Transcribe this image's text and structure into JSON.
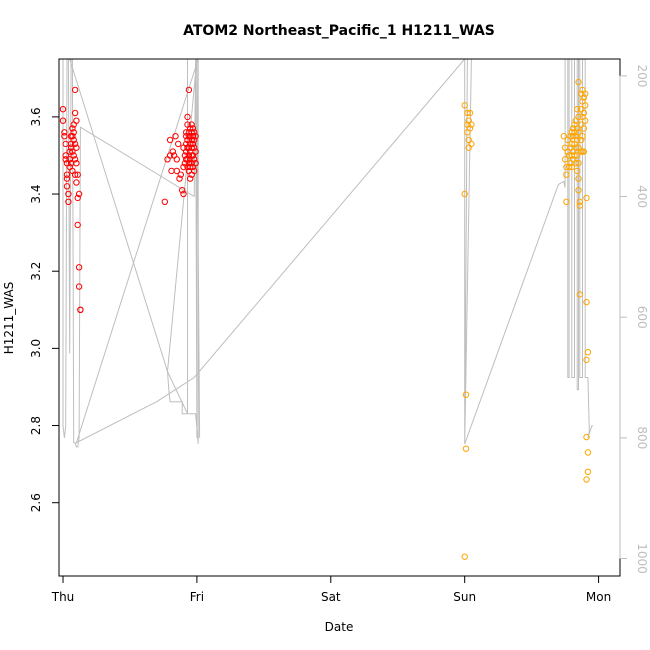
{
  "chart_data": {
    "type": "scatter",
    "title": "ATOM2 Northeast_Pacific_1 H1211_WAS",
    "xlabel": "Date",
    "ylabel": "H1211_WAS",
    "x_ticks": [
      "Thu",
      "Fri",
      "Sat",
      "Sun",
      "Mon"
    ],
    "x_range_days": [
      -0.03,
      4.16
    ],
    "ylim": [
      2.41,
      3.75
    ],
    "y_ticks": [
      2.6,
      2.8,
      3.0,
      3.2,
      3.4,
      3.6
    ],
    "y2_ticks": [
      200,
      400,
      600,
      800,
      1000
    ],
    "y2lim": [
      1029,
      172
    ],
    "grid": false,
    "legend": "none",
    "colors": {
      "series_a": "#ff0000",
      "series_b": "#ffa500",
      "altitude_line": "#bebebe",
      "axis": "#000000"
    },
    "series": [
      {
        "color": "#ff0000",
        "points": [
          [
            0.0,
            3.62
          ],
          [
            0.0,
            3.59
          ],
          [
            0.01,
            3.56
          ],
          [
            0.01,
            3.55
          ],
          [
            0.02,
            3.53
          ],
          [
            0.02,
            3.5
          ],
          [
            0.02,
            3.49
          ],
          [
            0.03,
            3.48
          ],
          [
            0.03,
            3.45
          ],
          [
            0.03,
            3.44
          ],
          [
            0.03,
            3.42
          ],
          [
            0.04,
            3.4
          ],
          [
            0.04,
            3.38
          ],
          [
            0.05,
            3.51
          ],
          [
            0.05,
            3.49
          ],
          [
            0.05,
            3.47
          ],
          [
            0.06,
            3.55
          ],
          [
            0.06,
            3.53
          ],
          [
            0.06,
            3.52
          ],
          [
            0.06,
            3.48
          ],
          [
            0.07,
            3.57
          ],
          [
            0.07,
            3.55
          ],
          [
            0.07,
            3.51
          ],
          [
            0.07,
            3.46
          ],
          [
            0.08,
            3.58
          ],
          [
            0.08,
            3.56
          ],
          [
            0.08,
            3.54
          ],
          [
            0.08,
            3.5
          ],
          [
            0.09,
            3.67
          ],
          [
            0.09,
            3.61
          ],
          [
            0.09,
            3.53
          ],
          [
            0.09,
            3.49
          ],
          [
            0.09,
            3.45
          ],
          [
            0.1,
            3.59
          ],
          [
            0.1,
            3.52
          ],
          [
            0.1,
            3.48
          ],
          [
            0.1,
            3.43
          ],
          [
            0.11,
            3.45
          ],
          [
            0.11,
            3.39
          ],
          [
            0.11,
            3.32
          ],
          [
            0.12,
            3.4
          ],
          [
            0.12,
            3.21
          ],
          [
            0.12,
            3.16
          ],
          [
            0.13,
            3.1
          ],
          [
            0.13,
            3.1
          ],
          [
            0.76,
            3.38
          ],
          [
            0.78,
            3.49
          ],
          [
            0.8,
            3.54
          ],
          [
            0.8,
            3.5
          ],
          [
            0.81,
            3.46
          ],
          [
            0.82,
            3.51
          ],
          [
            0.83,
            3.5
          ],
          [
            0.84,
            3.55
          ],
          [
            0.85,
            3.49
          ],
          [
            0.85,
            3.46
          ],
          [
            0.86,
            3.53
          ],
          [
            0.87,
            3.44
          ],
          [
            0.88,
            3.45
          ],
          [
            0.89,
            3.41
          ],
          [
            0.9,
            3.47
          ],
          [
            0.9,
            3.4
          ],
          [
            0.9,
            3.52
          ],
          [
            0.91,
            3.5
          ],
          [
            0.91,
            3.48
          ],
          [
            0.92,
            3.56
          ],
          [
            0.92,
            3.55
          ],
          [
            0.92,
            3.53
          ],
          [
            0.92,
            3.51
          ],
          [
            0.92,
            3.49
          ],
          [
            0.93,
            3.6
          ],
          [
            0.93,
            3.58
          ],
          [
            0.93,
            3.54
          ],
          [
            0.93,
            3.52
          ],
          [
            0.93,
            3.49
          ],
          [
            0.93,
            3.47
          ],
          [
            0.94,
            3.67
          ],
          [
            0.94,
            3.56
          ],
          [
            0.94,
            3.55
          ],
          [
            0.94,
            3.52
          ],
          [
            0.94,
            3.5
          ],
          [
            0.94,
            3.48
          ],
          [
            0.94,
            3.46
          ],
          [
            0.95,
            3.57
          ],
          [
            0.95,
            3.55
          ],
          [
            0.95,
            3.53
          ],
          [
            0.95,
            3.51
          ],
          [
            0.95,
            3.49
          ],
          [
            0.95,
            3.47
          ],
          [
            0.95,
            3.44
          ],
          [
            0.96,
            3.58
          ],
          [
            0.96,
            3.56
          ],
          [
            0.96,
            3.54
          ],
          [
            0.96,
            3.52
          ],
          [
            0.96,
            3.5
          ],
          [
            0.96,
            3.48
          ],
          [
            0.96,
            3.45
          ],
          [
            0.97,
            3.57
          ],
          [
            0.97,
            3.55
          ],
          [
            0.97,
            3.53
          ],
          [
            0.97,
            3.5
          ],
          [
            0.97,
            3.47
          ],
          [
            0.98,
            3.56
          ],
          [
            0.98,
            3.54
          ],
          [
            0.98,
            3.52
          ],
          [
            0.98,
            3.49
          ],
          [
            0.98,
            3.46
          ],
          [
            0.99,
            3.55
          ],
          [
            0.99,
            3.51
          ],
          [
            0.99,
            3.48
          ]
        ]
      },
      {
        "color": "#ffa500",
        "points": [
          [
            3.0,
            3.63
          ],
          [
            3.0,
            3.4
          ],
          [
            3.01,
            2.88
          ],
          [
            3.01,
            2.74
          ],
          [
            3.0,
            2.46
          ],
          [
            3.02,
            3.61
          ],
          [
            3.02,
            3.58
          ],
          [
            3.02,
            3.56
          ],
          [
            3.03,
            3.59
          ],
          [
            3.03,
            3.54
          ],
          [
            3.03,
            3.52
          ],
          [
            3.04,
            3.61
          ],
          [
            3.04,
            3.57
          ],
          [
            3.05,
            3.58
          ],
          [
            3.05,
            3.53
          ],
          [
            3.74,
            3.55
          ],
          [
            3.75,
            3.52
          ],
          [
            3.75,
            3.49
          ],
          [
            3.76,
            3.47
          ],
          [
            3.76,
            3.45
          ],
          [
            3.76,
            3.38
          ],
          [
            3.77,
            3.54
          ],
          [
            3.77,
            3.51
          ],
          [
            3.78,
            3.5
          ],
          [
            3.78,
            3.47
          ],
          [
            3.79,
            3.55
          ],
          [
            3.79,
            3.52
          ],
          [
            3.79,
            3.48
          ],
          [
            3.8,
            3.56
          ],
          [
            3.8,
            3.53
          ],
          [
            3.8,
            3.5
          ],
          [
            3.8,
            3.47
          ],
          [
            3.81,
            3.57
          ],
          [
            3.81,
            3.55
          ],
          [
            3.81,
            3.51
          ],
          [
            3.81,
            3.49
          ],
          [
            3.82,
            3.58
          ],
          [
            3.82,
            3.56
          ],
          [
            3.82,
            3.53
          ],
          [
            3.82,
            3.5
          ],
          [
            3.83,
            3.59
          ],
          [
            3.83,
            3.55
          ],
          [
            3.83,
            3.52
          ],
          [
            3.83,
            3.48
          ],
          [
            3.84,
            3.62
          ],
          [
            3.84,
            3.57
          ],
          [
            3.84,
            3.54
          ],
          [
            3.84,
            3.5
          ],
          [
            3.84,
            3.46
          ],
          [
            3.85,
            3.69
          ],
          [
            3.85,
            3.6
          ],
          [
            3.85,
            3.56
          ],
          [
            3.85,
            3.52
          ],
          [
            3.85,
            3.48
          ],
          [
            3.85,
            3.44
          ],
          [
            3.85,
            3.41
          ],
          [
            3.86,
            3.38
          ],
          [
            3.86,
            3.37
          ],
          [
            3.86,
            3.14
          ],
          [
            3.87,
            3.66
          ],
          [
            3.87,
            3.62
          ],
          [
            3.87,
            3.58
          ],
          [
            3.87,
            3.54
          ],
          [
            3.87,
            3.51
          ],
          [
            3.88,
            3.67
          ],
          [
            3.88,
            3.64
          ],
          [
            3.88,
            3.6
          ],
          [
            3.88,
            3.55
          ],
          [
            3.88,
            3.51
          ],
          [
            3.89,
            3.65
          ],
          [
            3.89,
            3.61
          ],
          [
            3.89,
            3.57
          ],
          [
            3.89,
            3.51
          ],
          [
            3.9,
            3.66
          ],
          [
            3.9,
            3.63
          ],
          [
            3.9,
            3.59
          ],
          [
            3.91,
            3.39
          ],
          [
            3.91,
            3.12
          ],
          [
            3.91,
            2.97
          ],
          [
            3.92,
            2.99
          ],
          [
            3.91,
            2.77
          ],
          [
            3.92,
            2.73
          ],
          [
            3.92,
            2.68
          ],
          [
            3.91,
            2.66
          ]
        ]
      }
    ],
    "altitude_line_y2": [
      [
        0.0,
        172
      ],
      [
        0.0,
        780
      ],
      [
        0.01,
        800
      ],
      [
        0.02,
        780
      ],
      [
        0.03,
        172
      ],
      [
        0.04,
        172
      ],
      [
        0.05,
        660
      ],
      [
        0.06,
        172
      ],
      [
        0.07,
        172
      ],
      [
        0.08,
        808
      ],
      [
        0.09,
        808
      ],
      [
        0.1,
        815
      ],
      [
        0.11,
        815
      ],
      [
        0.12,
        800
      ],
      [
        0.13,
        285
      ],
      [
        0.98,
        400
      ],
      [
        0.99,
        172
      ],
      [
        1.0,
        800
      ],
      [
        1.0,
        172
      ],
      [
        0.93,
        172
      ],
      [
        0.93,
        760
      ],
      [
        0.9,
        760
      ],
      [
        0.89,
        760
      ],
      [
        0.89,
        740
      ],
      [
        0.8,
        740
      ],
      [
        0.79,
        720
      ],
      [
        0.78,
        690
      ],
      [
        0.05,
        172
      ],
      [
        1.0,
        172
      ],
      [
        1.02,
        800
      ],
      [
        1.0,
        172
      ],
      [
        0.78,
        690
      ],
      [
        0.93,
        760
      ],
      [
        0.99,
        760
      ],
      [
        1.01,
        810
      ],
      [
        1.01,
        172
      ],
      [
        0.1,
        808
      ],
      [
        0.7,
        740
      ],
      [
        0.98,
        700
      ],
      [
        3.0,
        172
      ],
      [
        3.0,
        810
      ],
      [
        3.02,
        172
      ],
      [
        3.05,
        172
      ],
      [
        3.0,
        810
      ],
      [
        3.7,
        380
      ],
      [
        3.74,
        375
      ],
      [
        3.75,
        385
      ],
      [
        3.75,
        172
      ],
      [
        3.77,
        172
      ],
      [
        3.77,
        700
      ],
      [
        3.78,
        700
      ],
      [
        3.78,
        172
      ],
      [
        3.8,
        172
      ],
      [
        3.8,
        700
      ],
      [
        3.82,
        700
      ],
      [
        3.82,
        172
      ],
      [
        3.84,
        172
      ],
      [
        3.84,
        720
      ],
      [
        3.85,
        720
      ],
      [
        3.85,
        172
      ],
      [
        3.86,
        172
      ],
      [
        3.86,
        700
      ],
      [
        3.88,
        700
      ],
      [
        3.88,
        172
      ],
      [
        3.9,
        172
      ],
      [
        3.9,
        700
      ],
      [
        3.92,
        700
      ],
      [
        3.93,
        780
      ],
      [
        3.93,
        790
      ],
      [
        3.92,
        800
      ],
      [
        3.95,
        780
      ],
      [
        3.96,
        780
      ]
    ]
  }
}
